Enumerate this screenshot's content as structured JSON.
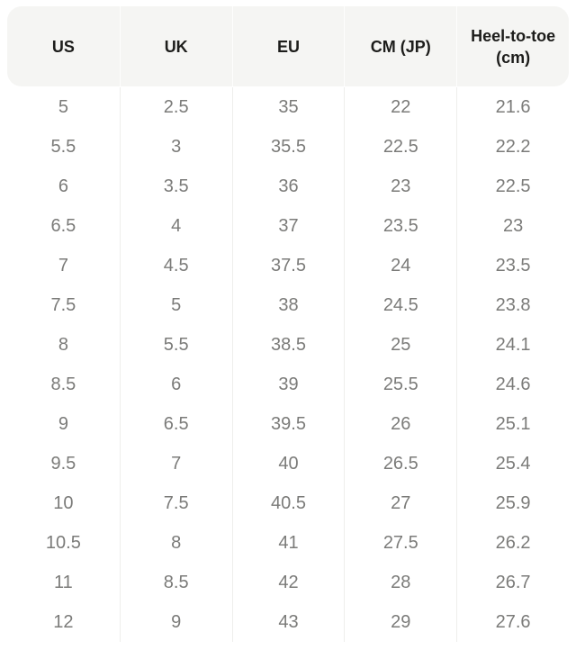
{
  "size_chart": {
    "columns": [
      "US",
      "UK",
      "EU",
      "CM (JP)",
      "Heel-to-toe (cm)"
    ],
    "rows": [
      [
        "5",
        "2.5",
        "35",
        "22",
        "21.6"
      ],
      [
        "5.5",
        "3",
        "35.5",
        "22.5",
        "22.2"
      ],
      [
        "6",
        "3.5",
        "36",
        "23",
        "22.5"
      ],
      [
        "6.5",
        "4",
        "37",
        "23.5",
        "23"
      ],
      [
        "7",
        "4.5",
        "37.5",
        "24",
        "23.5"
      ],
      [
        "7.5",
        "5",
        "38",
        "24.5",
        "23.8"
      ],
      [
        "8",
        "5.5",
        "38.5",
        "25",
        "24.1"
      ],
      [
        "8.5",
        "6",
        "39",
        "25.5",
        "24.6"
      ],
      [
        "9",
        "6.5",
        "39.5",
        "26",
        "25.1"
      ],
      [
        "9.5",
        "7",
        "40",
        "26.5",
        "25.4"
      ],
      [
        "10",
        "7.5",
        "40.5",
        "27",
        "25.9"
      ],
      [
        "10.5",
        "8",
        "41",
        "27.5",
        "26.2"
      ],
      [
        "11",
        "8.5",
        "42",
        "28",
        "26.7"
      ],
      [
        "12",
        "9",
        "43",
        "29",
        "27.6"
      ]
    ]
  },
  "colors": {
    "header_bg": "#f5f5f3",
    "header_text": "#1d1d1b",
    "body_text": "#7b7b79",
    "divider": "#eeeeec",
    "page_bg": "#ffffff"
  }
}
